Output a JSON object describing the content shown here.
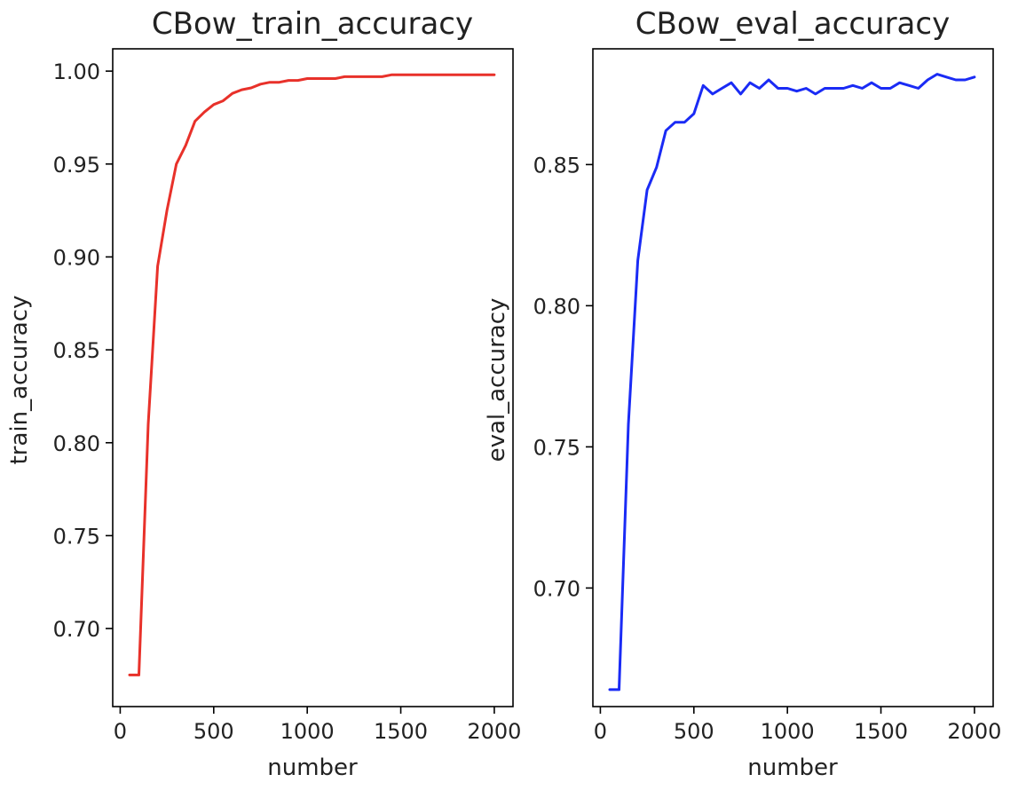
{
  "chart_data": [
    {
      "type": "line",
      "title": "CBow_train_accuracy",
      "xlabel": "number",
      "ylabel": "train_accuracy",
      "xlim": [
        -40,
        2100
      ],
      "ylim": [
        0.658,
        1.012
      ],
      "xticks": [
        0,
        500,
        1000,
        1500,
        2000
      ],
      "yticks": [
        0.7,
        0.75,
        0.8,
        0.85,
        0.9,
        0.95,
        1.0
      ],
      "xtick_labels": [
        "0",
        "500",
        "1000",
        "1500",
        "2000"
      ],
      "ytick_labels": [
        "0.70",
        "0.75",
        "0.80",
        "0.85",
        "0.90",
        "0.95",
        "1.00"
      ],
      "grid": false,
      "color": "#e8312a",
      "x": [
        50,
        100,
        150,
        200,
        250,
        300,
        350,
        400,
        450,
        500,
        550,
        600,
        650,
        700,
        750,
        800,
        850,
        900,
        950,
        1000,
        1050,
        1100,
        1150,
        1200,
        1250,
        1300,
        1350,
        1400,
        1450,
        1500,
        1550,
        1600,
        1650,
        1700,
        1750,
        1800,
        1850,
        1900,
        1950,
        2000
      ],
      "y": [
        0.675,
        0.675,
        0.81,
        0.895,
        0.925,
        0.95,
        0.96,
        0.973,
        0.978,
        0.982,
        0.984,
        0.988,
        0.99,
        0.991,
        0.993,
        0.994,
        0.994,
        0.995,
        0.995,
        0.996,
        0.996,
        0.996,
        0.996,
        0.997,
        0.997,
        0.997,
        0.997,
        0.997,
        0.998,
        0.998,
        0.998,
        0.998,
        0.998,
        0.998,
        0.998,
        0.998,
        0.998,
        0.998,
        0.998,
        0.998
      ]
    },
    {
      "type": "line",
      "title": "CBow_eval_accuracy",
      "xlabel": "number",
      "ylabel": "eval_accuracy",
      "xlim": [
        -40,
        2100
      ],
      "ylim": [
        0.658,
        0.891
      ],
      "xticks": [
        0,
        500,
        1000,
        1500,
        2000
      ],
      "yticks": [
        0.7,
        0.75,
        0.8,
        0.85
      ],
      "xtick_labels": [
        "0",
        "500",
        "1000",
        "1500",
        "2000"
      ],
      "ytick_labels": [
        "0.70",
        "0.75",
        "0.80",
        "0.85"
      ],
      "grid": false,
      "color": "#1a2bf5",
      "x": [
        50,
        100,
        150,
        200,
        250,
        300,
        350,
        400,
        450,
        500,
        550,
        600,
        650,
        700,
        750,
        800,
        850,
        900,
        950,
        1000,
        1050,
        1100,
        1150,
        1200,
        1250,
        1300,
        1350,
        1400,
        1450,
        1500,
        1550,
        1600,
        1650,
        1700,
        1750,
        1800,
        1850,
        1900,
        1950,
        2000
      ],
      "y": [
        0.664,
        0.664,
        0.758,
        0.816,
        0.841,
        0.849,
        0.862,
        0.865,
        0.865,
        0.868,
        0.878,
        0.875,
        0.877,
        0.879,
        0.875,
        0.879,
        0.877,
        0.88,
        0.877,
        0.877,
        0.876,
        0.877,
        0.875,
        0.877,
        0.877,
        0.877,
        0.878,
        0.877,
        0.879,
        0.877,
        0.877,
        0.879,
        0.878,
        0.877,
        0.88,
        0.882,
        0.881,
        0.88,
        0.88,
        0.881
      ]
    }
  ]
}
